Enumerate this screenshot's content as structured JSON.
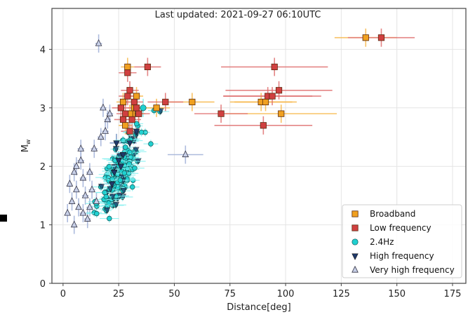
{
  "chart_data": {
    "type": "scatter",
    "title": "Last updated: 2021-09-27 06:10UTC",
    "xlabel": "Distance[deg]",
    "ylabel": "M",
    "ylabel_sub": "w",
    "xlim": [
      -5,
      181
    ],
    "ylim": [
      0,
      4.7
    ],
    "xticks": [
      0,
      25,
      50,
      75,
      100,
      125,
      150,
      175
    ],
    "yticks": [
      0,
      1,
      2,
      3,
      4
    ],
    "grid": true,
    "legend_position": "bottom-right",
    "series": [
      {
        "name": "Broadband",
        "marker": "square",
        "color": "#f0a020",
        "errcolor": "#f7b84a",
        "points": [
          {
            "x": 136,
            "y": 4.2,
            "xerr": 14
          },
          {
            "x": 29,
            "y": 3.7,
            "xerr": 3
          },
          {
            "x": 33,
            "y": 3.2,
            "xerr": 3
          },
          {
            "x": 31,
            "y": 2.9,
            "xerr": 3
          },
          {
            "x": 27,
            "y": 3.1,
            "xerr": 3
          },
          {
            "x": 42,
            "y": 3.0,
            "xerr": 6
          },
          {
            "x": 58,
            "y": 3.1,
            "xerr": 10
          },
          {
            "x": 89,
            "y": 3.1,
            "xerr": 14
          },
          {
            "x": 91,
            "y": 3.1,
            "xerr": 14
          },
          {
            "x": 98,
            "y": 2.9,
            "xerr": 25
          },
          {
            "x": 30,
            "y": 2.9,
            "xerr": 3
          },
          {
            "x": 32,
            "y": 3.0,
            "xerr": 3
          },
          {
            "x": 28,
            "y": 2.7,
            "xerr": 3
          },
          {
            "x": 34,
            "y": 2.9,
            "xerr": 3
          }
        ]
      },
      {
        "name": "Low frequency",
        "marker": "square",
        "color": "#d04040",
        "errcolor": "#e07070",
        "points": [
          {
            "x": 143,
            "y": 4.2,
            "xerr": 15
          },
          {
            "x": 29,
            "y": 3.6,
            "xerr": 4
          },
          {
            "x": 38,
            "y": 3.7,
            "xerr": 6
          },
          {
            "x": 95,
            "y": 3.7,
            "xerr": 24
          },
          {
            "x": 97,
            "y": 3.3,
            "xerr": 24
          },
          {
            "x": 92,
            "y": 3.2,
            "xerr": 20
          },
          {
            "x": 94,
            "y": 3.2,
            "xerr": 22
          },
          {
            "x": 46,
            "y": 3.1,
            "xerr": 8
          },
          {
            "x": 71,
            "y": 2.9,
            "xerr": 12
          },
          {
            "x": 90,
            "y": 2.7,
            "xerr": 22
          },
          {
            "x": 30,
            "y": 3.3,
            "xerr": 4
          },
          {
            "x": 32,
            "y": 3.1,
            "xerr": 4
          },
          {
            "x": 26,
            "y": 3.0,
            "xerr": 4
          },
          {
            "x": 28,
            "y": 2.9,
            "xerr": 4
          },
          {
            "x": 31,
            "y": 2.8,
            "xerr": 4
          },
          {
            "x": 34,
            "y": 2.9,
            "xerr": 5
          },
          {
            "x": 29,
            "y": 3.2,
            "xerr": 4
          },
          {
            "x": 33,
            "y": 3.0,
            "xerr": 4
          },
          {
            "x": 30,
            "y": 2.6,
            "xerr": 4
          },
          {
            "x": 27,
            "y": 2.8,
            "xerr": 4
          }
        ]
      },
      {
        "name": "2.4Hz",
        "marker": "circle",
        "color": "#20d0d0",
        "errcolor": "#7ff0f0",
        "points": [
          {
            "x": 36,
            "y": 3.0,
            "xerr": 4
          }
        ],
        "cluster": {
          "n": 170,
          "x_mean": 26,
          "x_sd": 4.5,
          "y_base": 1.45,
          "y_slope": 0.055,
          "y_sd": 0.22,
          "seed": 7
        }
      },
      {
        "name": "High frequency",
        "marker": "triangle-down",
        "color": "#1f3a6b",
        "errcolor": "#6f8fc0",
        "points": [
          {
            "x": 24,
            "y": 2.4,
            "xerr": 3
          },
          {
            "x": 25,
            "y": 2.1,
            "xerr": 3
          },
          {
            "x": 23,
            "y": 1.9,
            "xerr": 3
          },
          {
            "x": 27,
            "y": 2.2,
            "xerr": 3
          },
          {
            "x": 22,
            "y": 1.7,
            "xerr": 3
          },
          {
            "x": 30,
            "y": 2.4,
            "xerr": 3
          },
          {
            "x": 26,
            "y": 2.0,
            "xerr": 3
          },
          {
            "x": 33,
            "y": 2.6,
            "xerr": 4
          }
        ]
      },
      {
        "name": "Very high frequency",
        "marker": "triangle-up",
        "color": "#c8d0e8",
        "errcolor": "#9fb0d8",
        "points": [
          {
            "x": 16,
            "y": 4.1,
            "xerr": 1.5
          },
          {
            "x": 18,
            "y": 3.0,
            "xerr": 1.5
          },
          {
            "x": 20,
            "y": 2.8,
            "xerr": 1.5
          },
          {
            "x": 55,
            "y": 2.2,
            "xerr": 8
          },
          {
            "x": 2,
            "y": 1.2,
            "xerr": 1
          },
          {
            "x": 4,
            "y": 1.4,
            "xerr": 1
          },
          {
            "x": 5,
            "y": 1.0,
            "xerr": 1
          },
          {
            "x": 6,
            "y": 1.6,
            "xerr": 1
          },
          {
            "x": 7,
            "y": 1.3,
            "xerr": 1
          },
          {
            "x": 8,
            "y": 2.1,
            "xerr": 1.5
          },
          {
            "x": 9,
            "y": 1.8,
            "xerr": 1.5
          },
          {
            "x": 10,
            "y": 1.5,
            "xerr": 1.5
          },
          {
            "x": 11,
            "y": 1.1,
            "xerr": 1.5
          },
          {
            "x": 12,
            "y": 1.9,
            "xerr": 1.5
          },
          {
            "x": 13,
            "y": 1.6,
            "xerr": 1.5
          },
          {
            "x": 14,
            "y": 2.3,
            "xerr": 1.5
          },
          {
            "x": 15,
            "y": 1.4,
            "xerr": 1.5
          },
          {
            "x": 17,
            "y": 2.5,
            "xerr": 1.5
          },
          {
            "x": 3,
            "y": 1.7,
            "xerr": 1
          },
          {
            "x": 6,
            "y": 2.0,
            "xerr": 1
          },
          {
            "x": 8,
            "y": 2.3,
            "xerr": 1.5
          },
          {
            "x": 5,
            "y": 1.9,
            "xerr": 1
          },
          {
            "x": 9,
            "y": 1.2,
            "xerr": 1.5
          },
          {
            "x": 12,
            "y": 1.3,
            "xerr": 1.5
          },
          {
            "x": 19,
            "y": 2.6,
            "xerr": 1.5
          },
          {
            "x": 21,
            "y": 2.9,
            "xerr": 1.5
          }
        ]
      }
    ]
  }
}
